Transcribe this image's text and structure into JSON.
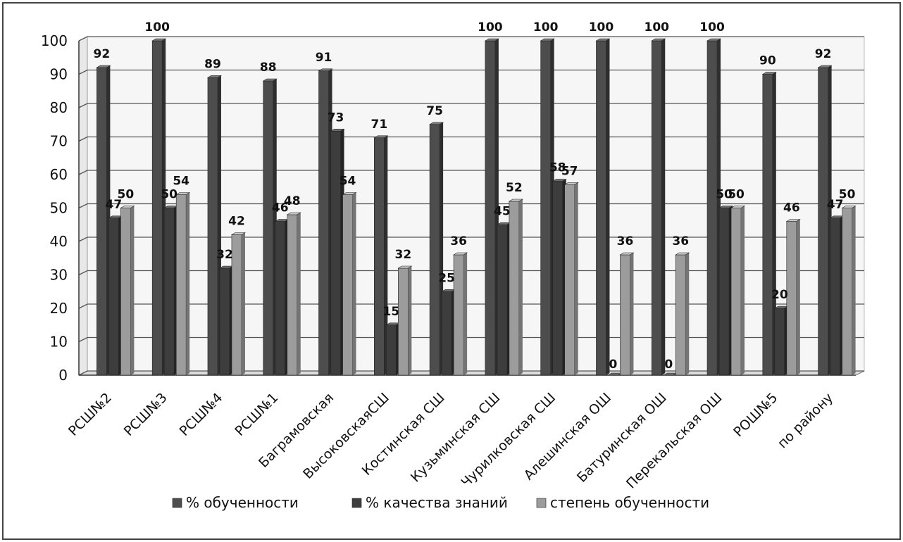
{
  "chart_data": {
    "type": "bar",
    "title": "",
    "xlabel": "",
    "ylabel": "",
    "ylim": [
      0,
      100
    ],
    "yticks": [
      0,
      10,
      20,
      30,
      40,
      50,
      60,
      70,
      80,
      90,
      100
    ],
    "grid": true,
    "legend_position": "bottom",
    "categories": [
      "РСШ№2",
      "РСШ№3",
      "РСШ№4",
      "РСШ№1",
      "Баграмовская",
      "ВысоковскаяСШ",
      "Костинская СШ",
      "Кузьминская СШ",
      "Чурилковская СШ",
      "Алешинская ОШ",
      "Батуринская ОШ",
      "Перекальская ОШ",
      "РОШ№5",
      "по району"
    ],
    "series": [
      {
        "name": "% обученности",
        "color": "#4a4a4a",
        "values": [
          92,
          100,
          89,
          88,
          91,
          71,
          75,
          100,
          100,
          100,
          100,
          100,
          90,
          92
        ]
      },
      {
        "name": "% качества знаний",
        "color": "#3c3c3c",
        "values": [
          47,
          50,
          32,
          46,
          73,
          15,
          25,
          45,
          58,
          0,
          0,
          50,
          20,
          47
        ]
      },
      {
        "name": "степень обученности",
        "color": "#9a9a9a",
        "values": [
          50,
          54,
          42,
          48,
          54,
          32,
          36,
          52,
          57,
          36,
          36,
          50,
          46,
          50
        ]
      }
    ]
  }
}
